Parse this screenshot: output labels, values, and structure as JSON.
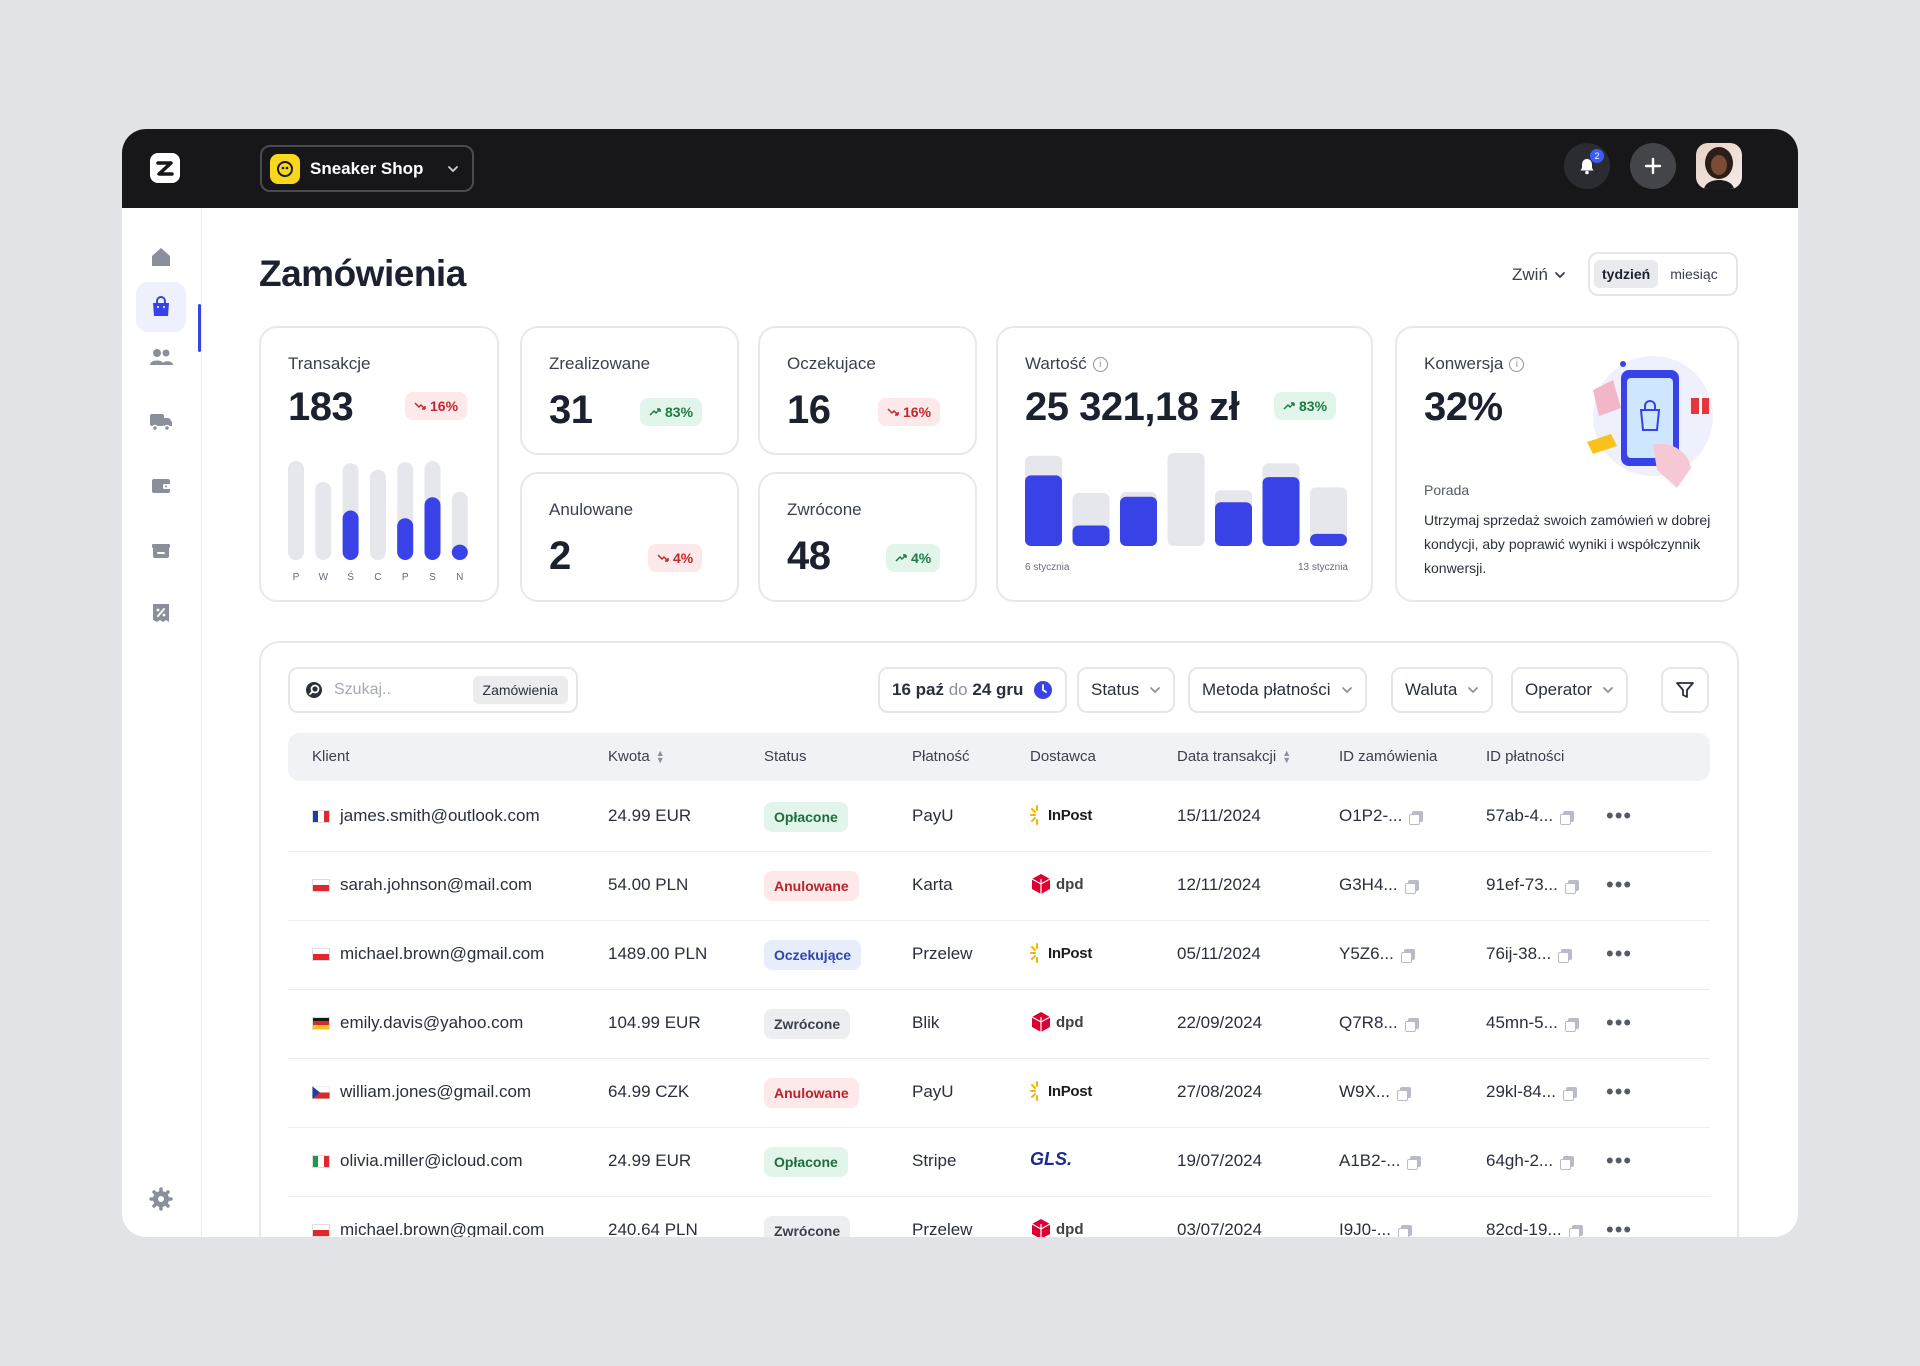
{
  "header": {
    "shop_name": "Sneaker Shop",
    "notifications_count": "2"
  },
  "page": {
    "title": "Zamówienia",
    "collapse_label": "Zwiń",
    "period_options": [
      "tydzień",
      "miesiąc"
    ],
    "period_selected": "tydzień"
  },
  "stats": {
    "transakcje": {
      "label": "Transakcje",
      "value": "183",
      "change": "16%",
      "trend": "down",
      "days": [
        "P",
        "W",
        "Ś",
        "C",
        "P",
        "S",
        "N"
      ],
      "bars_total": [
        0.9,
        0.71,
        0.88,
        0.82,
        0.89,
        0.9,
        0.62
      ],
      "bars_fill": [
        0.0,
        0.0,
        0.45,
        0.0,
        0.38,
        0.57,
        0.14
      ]
    },
    "zrealizowane": {
      "label": "Zrealizowane",
      "value": "31",
      "change": "83%",
      "trend": "up"
    },
    "oczekujace": {
      "label": "Oczekujace",
      "value": "16",
      "change": "16%",
      "trend": "down"
    },
    "anulowane": {
      "label": "Anulowane",
      "value": "2",
      "change": "4%",
      "trend": "down"
    },
    "zwrocone": {
      "label": "Zwrócone",
      "value": "48",
      "change": "4%",
      "trend": "up"
    },
    "wartosc": {
      "label": "Wartość",
      "value": "25 321,18 zł",
      "change": "83%",
      "trend": "up",
      "date_start": "6 stycznia",
      "date_end": "13 stycznia",
      "bars_total": [
        0.97,
        0.57,
        0.58,
        1.0,
        0.6,
        0.89,
        0.63
      ],
      "bars_fill": [
        0.76,
        0.22,
        0.53,
        0.0,
        0.47,
        0.74,
        0.13
      ]
    },
    "konwersja": {
      "label": "Konwersja",
      "value": "32%",
      "tip_title": "Porada",
      "tip_text": "Utrzymaj sprzedaż swoich zamówień w dobrej kondycji, aby poprawić wyniki i współczynnik konwersji."
    }
  },
  "toolbar": {
    "search_placeholder": "Szukaj..",
    "search_scope": "Zamówienia",
    "date_from": "16 paź",
    "date_sep": "do",
    "date_to": "24 gru",
    "filters": [
      "Status",
      "Metoda płatności",
      "Waluta",
      "Operator"
    ]
  },
  "table": {
    "columns": [
      "Klient",
      "Kwota",
      "Status",
      "Płatność",
      "Dostawca",
      "Data transakcji",
      "ID zamówienia",
      "ID płatności"
    ],
    "rows": [
      {
        "flag": "fr",
        "client": "james.smith@outlook.com",
        "amount": "24.99 EUR",
        "status": "Opłacone",
        "status_type": "paid",
        "payment": "PayU",
        "carrier": "InPost",
        "date": "15/11/2024",
        "order_id": "O1P2-...",
        "payment_id": "57ab-4..."
      },
      {
        "flag": "pl",
        "client": "sarah.johnson@mail.com",
        "amount": "54.00 PLN",
        "status": "Anulowane",
        "status_type": "cancel",
        "payment": "Karta",
        "carrier": "dpd",
        "date": "12/11/2024",
        "order_id": "G3H4...",
        "payment_id": "91ef-73..."
      },
      {
        "flag": "pl",
        "client": "michael.brown@gmail.com",
        "amount": "1489.00 PLN",
        "status": "Oczekujące",
        "status_type": "wait",
        "payment": "Przelew",
        "carrier": "InPost",
        "date": "05/11/2024",
        "order_id": "Y5Z6...",
        "payment_id": "76ij-38..."
      },
      {
        "flag": "de",
        "client": "emily.davis@yahoo.com",
        "amount": "104.99 EUR",
        "status": "Zwrócone",
        "status_type": "ret",
        "payment": "Blik",
        "carrier": "dpd",
        "date": "22/09/2024",
        "order_id": "Q7R8...",
        "payment_id": "45mn-5..."
      },
      {
        "flag": "cz",
        "client": "william.jones@gmail.com",
        "amount": "64.99 CZK",
        "status": "Anulowane",
        "status_type": "cancel",
        "payment": "PayU",
        "carrier": "InPost",
        "date": "27/08/2024",
        "order_id": "W9X...",
        "payment_id": "29kl-84..."
      },
      {
        "flag": "it",
        "client": "olivia.miller@icloud.com",
        "amount": "24.99 EUR",
        "status": "Opłacone",
        "status_type": "paid",
        "payment": "Stripe",
        "carrier": "GLS.",
        "date": "19/07/2024",
        "order_id": "A1B2-...",
        "payment_id": "64gh-2..."
      },
      {
        "flag": "pl",
        "client": "michael.brown@gmail.com",
        "amount": "240.64 PLN",
        "status": "Zwrócone",
        "status_type": "ret",
        "payment": "Przelew",
        "carrier": "dpd",
        "date": "03/07/2024",
        "order_id": "I9J0-...",
        "payment_id": "82cd-19..."
      }
    ]
  },
  "colors": {
    "accent": "#3942e6",
    "bar_bg": "#e6e7ec",
    "topbar": "#17171a"
  }
}
